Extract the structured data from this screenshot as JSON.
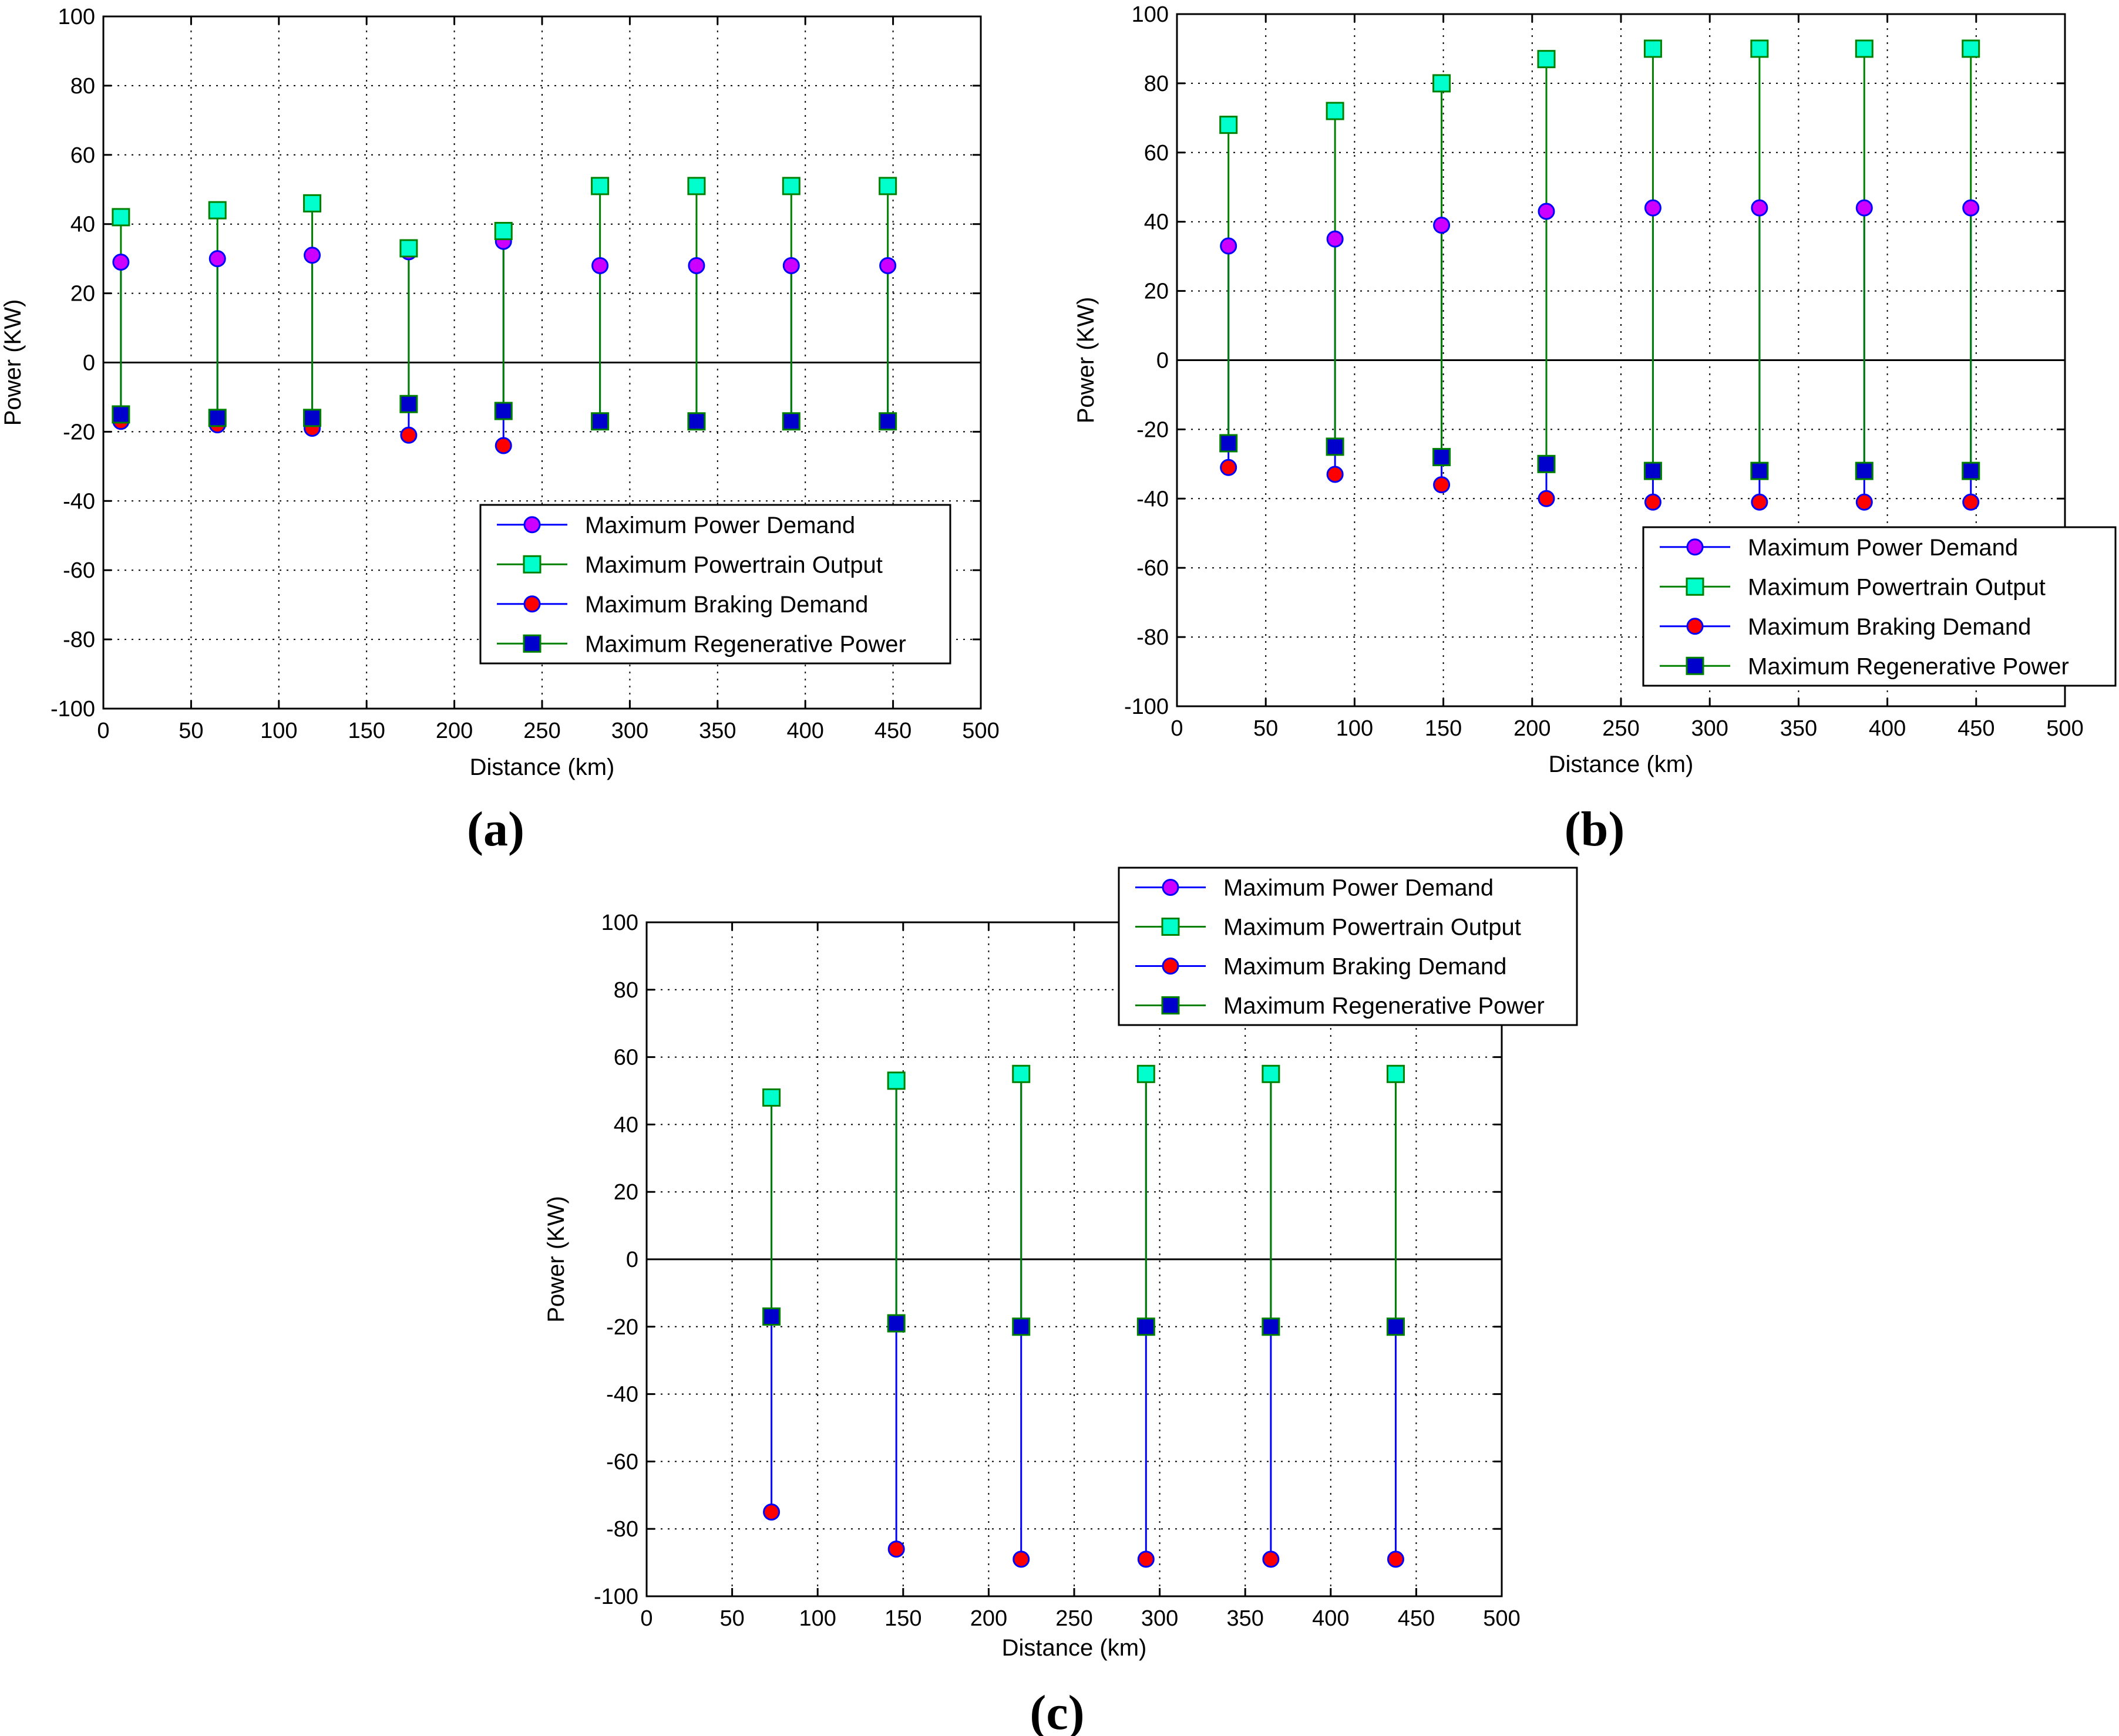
{
  "chart_data": [
    {
      "panel": "a",
      "panel_label": "(a)",
      "type": "stem",
      "xlabel": "Distance (km)",
      "ylabel": "Power (KW)",
      "xlim": [
        0,
        500
      ],
      "ylim": [
        -100,
        100
      ],
      "xticks": [
        0,
        50,
        100,
        150,
        200,
        250,
        300,
        350,
        400,
        450,
        500
      ],
      "yticks": [
        100,
        80,
        60,
        40,
        20,
        0,
        -20,
        -40,
        -60,
        -80,
        -100
      ],
      "grid": true,
      "legend_position": "lower-right",
      "x": [
        10,
        65,
        119,
        174,
        228,
        283,
        338,
        392,
        447
      ],
      "series": [
        {
          "name": "Maximum Power Demand",
          "values": [
            29,
            30,
            31,
            32,
            35,
            28,
            28,
            28,
            28
          ]
        },
        {
          "name": "Maximum Powertrain Output",
          "values": [
            42,
            44,
            46,
            33,
            38,
            51,
            51,
            51,
            51
          ]
        },
        {
          "name": "Maximum Braking Demand",
          "values": [
            -17,
            -18,
            -19,
            -21,
            -24,
            -17,
            -17,
            -17,
            -17
          ]
        },
        {
          "name": "Maximum Regenerative Power",
          "values": [
            -15,
            -16,
            -16,
            -12,
            -14,
            -17,
            -17,
            -17,
            -17
          ]
        }
      ]
    },
    {
      "panel": "b",
      "panel_label": "(b)",
      "type": "stem",
      "xlabel": "Distance (km)",
      "ylabel": "Power (KW)",
      "xlim": [
        0,
        500
      ],
      "ylim": [
        -100,
        100
      ],
      "xticks": [
        0,
        50,
        100,
        150,
        200,
        250,
        300,
        350,
        400,
        450,
        500
      ],
      "yticks": [
        100,
        80,
        60,
        40,
        20,
        0,
        -20,
        -40,
        -60,
        -80,
        -100
      ],
      "grid": true,
      "legend_position": "lower-right",
      "x": [
        29,
        89,
        149,
        208,
        268,
        328,
        387,
        447
      ],
      "series": [
        {
          "name": "Maximum Power Demand",
          "values": [
            33,
            35,
            39,
            43,
            44,
            44,
            44,
            44
          ]
        },
        {
          "name": "Maximum Powertrain Output",
          "values": [
            68,
            72,
            80,
            87,
            90,
            90,
            90,
            90
          ]
        },
        {
          "name": "Maximum Braking Demand",
          "values": [
            -31,
            -33,
            -36,
            -40,
            -41,
            -41,
            -41,
            -41
          ]
        },
        {
          "name": "Maximum Regenerative Power",
          "values": [
            -24,
            -25,
            -28,
            -30,
            -32,
            -32,
            -32,
            -32
          ]
        }
      ]
    },
    {
      "panel": "c",
      "panel_label": "(c)",
      "type": "stem",
      "xlabel": "Distance (km)",
      "ylabel": "Power (KW)",
      "xlim": [
        0,
        500
      ],
      "ylim": [
        -100,
        100
      ],
      "xticks": [
        0,
        50,
        100,
        150,
        200,
        250,
        300,
        350,
        400,
        450,
        500
      ],
      "yticks": [
        100,
        80,
        60,
        40,
        20,
        0,
        -20,
        -40,
        -60,
        -80,
        -100
      ],
      "grid": true,
      "legend_position": "above-top-right",
      "x": [
        73,
        146,
        219,
        292,
        365,
        438
      ],
      "series": [
        {
          "name": "Maximum Power Demand",
          "values": [
            48,
            53,
            55,
            55,
            55,
            55
          ]
        },
        {
          "name": "Maximum Powertrain Output",
          "values": [
            48,
            53,
            55,
            55,
            55,
            55
          ]
        },
        {
          "name": "Maximum Braking Demand",
          "values": [
            -75,
            -86,
            -89,
            -89,
            -89,
            -89
          ]
        },
        {
          "name": "Maximum Regenerative Power",
          "values": [
            -17,
            -19,
            -20,
            -20,
            -20,
            -20
          ]
        }
      ]
    }
  ],
  "colors": {
    "stem_blue": "#0000ff",
    "stem_green": "#008000",
    "demand_marker": "#cc00ff",
    "output_marker": "#00ffcc",
    "braking_marker": "#ff0000",
    "regen_marker": "#0000cc",
    "grid": "#000000"
  }
}
